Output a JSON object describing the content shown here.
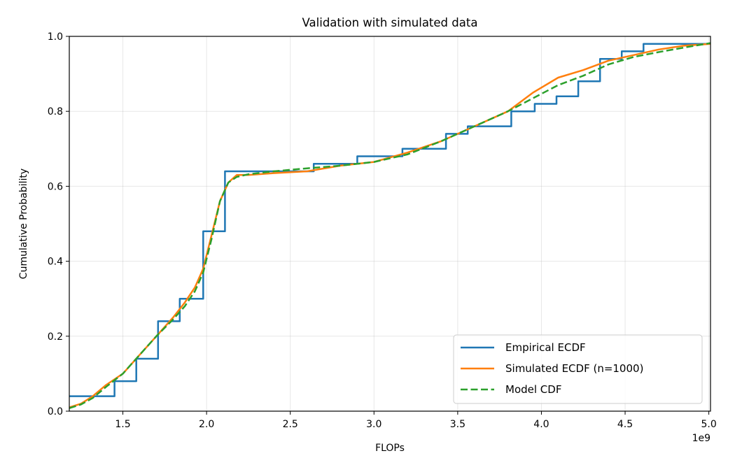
{
  "chart_data": {
    "type": "line",
    "title": "Validation with simulated data",
    "xlabel": "FLOPs",
    "ylabel": "Cumulative Probability",
    "x_offset_label": "1e9",
    "x_scale_factor": 1000000000,
    "xlim": [
      1.18,
      5.01
    ],
    "ylim": [
      0,
      1
    ],
    "x_ticks": [
      1.5,
      2.0,
      2.5,
      3.0,
      3.5,
      4.0,
      4.5,
      5.0
    ],
    "x_tick_labels": [
      "1.5",
      "2.0",
      "2.5",
      "3.0",
      "3.5",
      "4.0",
      "4.5",
      "5.0"
    ],
    "y_ticks": [
      0,
      0.2,
      0.4,
      0.6,
      0.8,
      1.0
    ],
    "y_tick_labels": [
      "0.0",
      "0.2",
      "0.4",
      "0.6",
      "0.8",
      "1.0"
    ],
    "grid": true,
    "legend_position": "lower-right",
    "series": [
      {
        "name": "Empirical ECDF",
        "style": "step",
        "color": "#1f77b4",
        "x": [
          1.18,
          1.45,
          1.58,
          1.71,
          1.84,
          1.98,
          2.11,
          2.64,
          2.9,
          3.17,
          3.43,
          3.56,
          3.82,
          3.96,
          4.09,
          4.22,
          4.35,
          4.48,
          4.61,
          5.01
        ],
        "y": [
          0.04,
          0.08,
          0.14,
          0.24,
          0.3,
          0.48,
          0.64,
          0.66,
          0.68,
          0.7,
          0.74,
          0.76,
          0.8,
          0.82,
          0.84,
          0.88,
          0.94,
          0.96,
          0.98,
          0.98
        ]
      },
      {
        "name": "Simulated ECDF (n=1000)",
        "style": "line",
        "color": "#ff7f0e",
        "x": [
          1.18,
          1.25,
          1.32,
          1.4,
          1.5,
          1.6,
          1.7,
          1.8,
          1.87,
          1.93,
          1.98,
          2.03,
          2.08,
          2.13,
          2.18,
          2.25,
          2.4,
          2.6,
          2.8,
          3.0,
          3.2,
          3.4,
          3.6,
          3.8,
          3.95,
          4.1,
          4.25,
          4.4,
          4.55,
          4.7,
          4.85,
          5.01
        ],
        "y": [
          0.01,
          0.02,
          0.04,
          0.07,
          0.1,
          0.15,
          0.2,
          0.25,
          0.29,
          0.33,
          0.38,
          0.47,
          0.56,
          0.61,
          0.63,
          0.63,
          0.635,
          0.64,
          0.655,
          0.665,
          0.69,
          0.72,
          0.76,
          0.8,
          0.85,
          0.89,
          0.91,
          0.935,
          0.95,
          0.965,
          0.975,
          0.98
        ]
      },
      {
        "name": "Model CDF",
        "style": "dashed",
        "color": "#2ca02c",
        "x": [
          1.18,
          1.25,
          1.32,
          1.4,
          1.5,
          1.6,
          1.7,
          1.8,
          1.87,
          1.93,
          1.98,
          2.03,
          2.08,
          2.13,
          2.18,
          2.25,
          2.4,
          2.6,
          2.8,
          3.0,
          3.2,
          3.4,
          3.6,
          3.8,
          3.95,
          4.1,
          4.25,
          4.4,
          4.55,
          4.7,
          4.85,
          5.01
        ],
        "y": [
          0.008,
          0.018,
          0.035,
          0.065,
          0.1,
          0.15,
          0.2,
          0.245,
          0.28,
          0.32,
          0.37,
          0.46,
          0.56,
          0.61,
          0.625,
          0.632,
          0.64,
          0.648,
          0.655,
          0.665,
          0.685,
          0.72,
          0.76,
          0.8,
          0.835,
          0.87,
          0.895,
          0.925,
          0.945,
          0.958,
          0.97,
          0.982
        ]
      }
    ]
  }
}
